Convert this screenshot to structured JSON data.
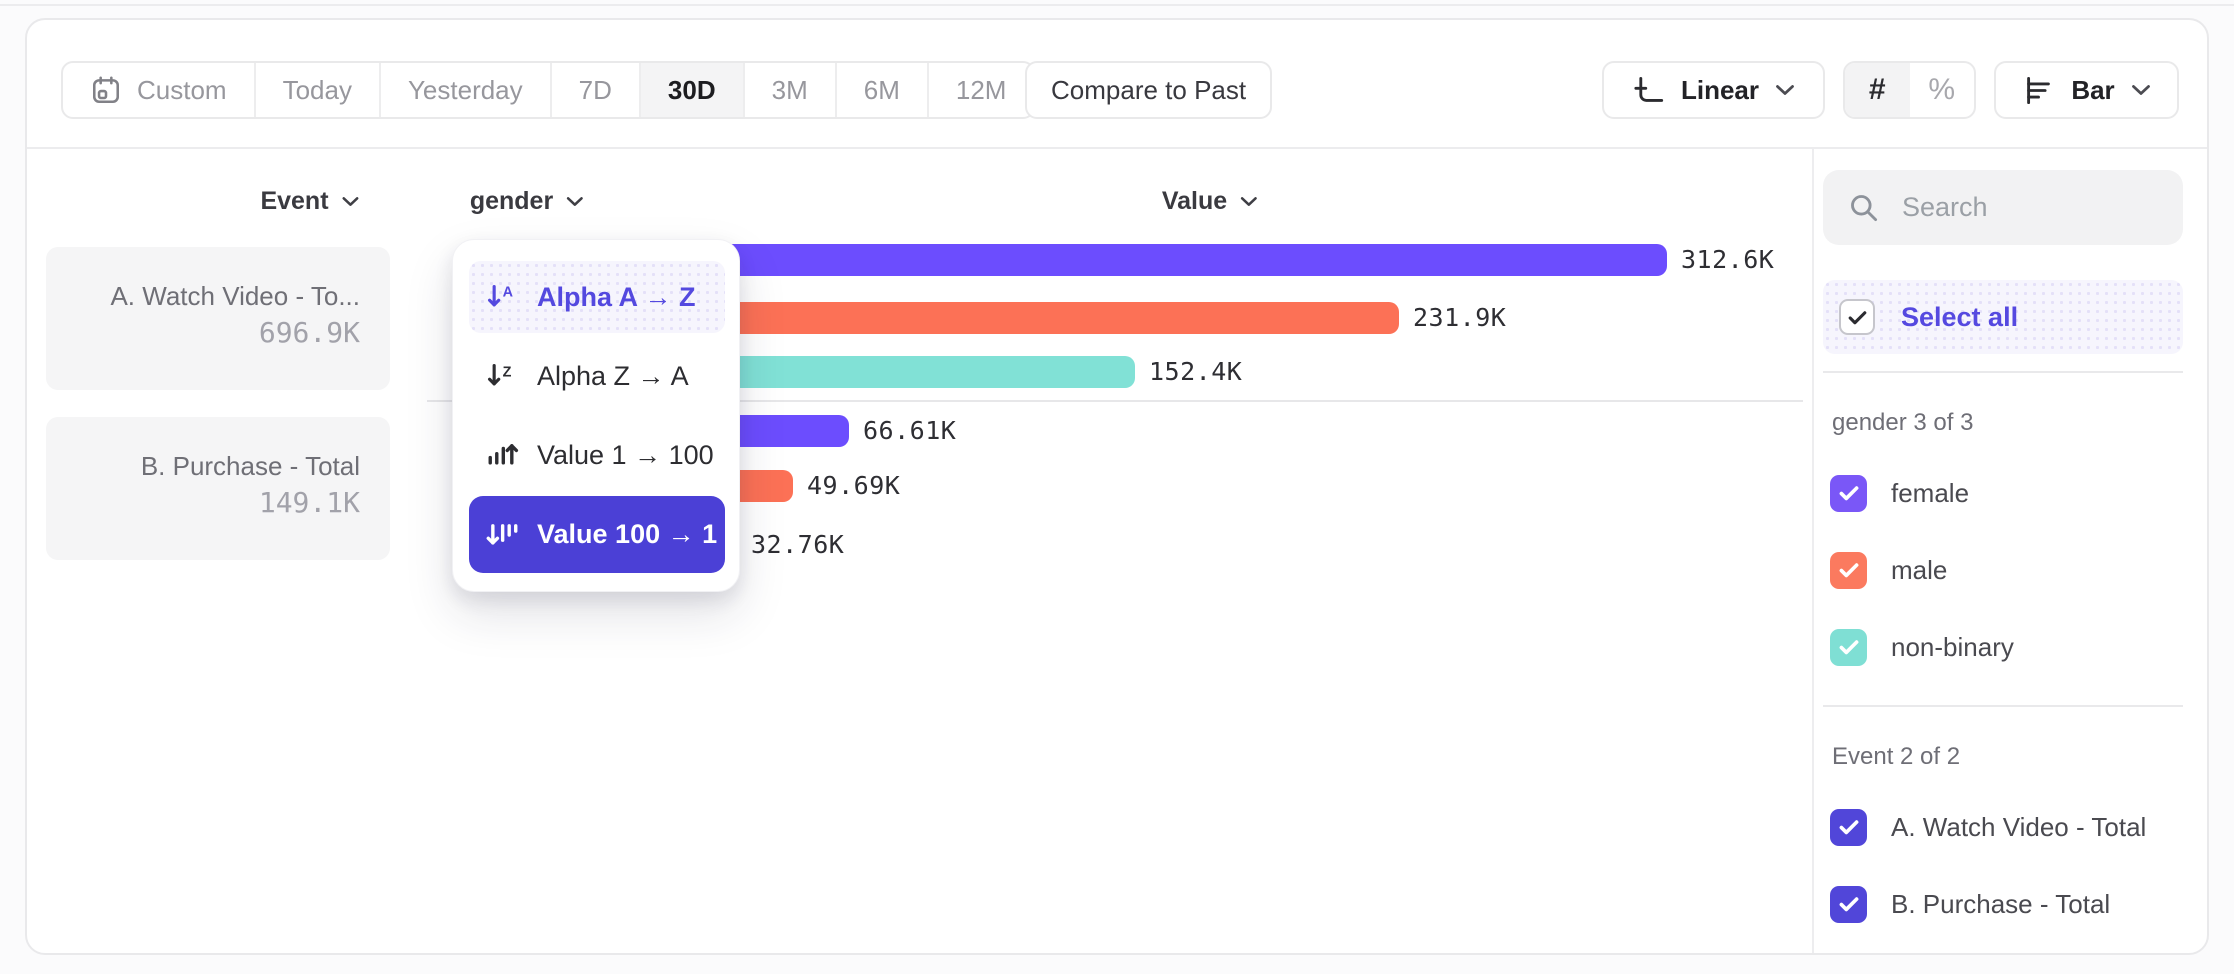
{
  "toolbar": {
    "date_ranges": [
      {
        "label": "Custom",
        "icon": "calendar-icon",
        "selected": false
      },
      {
        "label": "Today",
        "selected": false
      },
      {
        "label": "Yesterday",
        "selected": false
      },
      {
        "label": "7D",
        "selected": false
      },
      {
        "label": "30D",
        "selected": true
      },
      {
        "label": "3M",
        "selected": false
      },
      {
        "label": "6M",
        "selected": false
      },
      {
        "label": "12M",
        "selected": false
      }
    ],
    "compare_label": "Compare to Past",
    "scale_label": "Linear",
    "scale_icon": "linear-axes-icon",
    "format_count_label": "#",
    "format_percent_label": "%",
    "format_selected": "#",
    "chart_type_label": "Bar",
    "chart_type_icon": "bar-chart-icon"
  },
  "columns": {
    "event": "Event",
    "breakdown": "gender",
    "value": "Value"
  },
  "events": [
    {
      "name": "A. Watch Video - To...",
      "total": "696.9K"
    },
    {
      "name": "B. Purchase - Total",
      "total": "149.1K"
    }
  ],
  "sort_menu": {
    "items": [
      {
        "label": "Alpha A → Z",
        "icon": "sort-alpha-asc-icon",
        "state": "highlighted"
      },
      {
        "label": "Alpha Z → A",
        "icon": "sort-alpha-desc-icon",
        "state": ""
      },
      {
        "label": "Value 1 → 100",
        "icon": "sort-value-asc-icon",
        "state": ""
      },
      {
        "label": "Value 100 → 1",
        "icon": "sort-value-desc-icon",
        "state": "selected"
      }
    ]
  },
  "chart_data": {
    "type": "bar",
    "orientation": "horizontal",
    "sort": "Value 100 → 1",
    "value_axis_max": 312600,
    "palette": {
      "female": "#6c4dfe",
      "male": "#fc7156",
      "non-binary": "#81e1d6"
    },
    "groups": [
      {
        "event": "A. Watch Video - Total",
        "total_label": "696.9K",
        "bars": [
          {
            "category": "female",
            "value": 312600,
            "label": "312.6K"
          },
          {
            "category": "male",
            "value": 231900,
            "label": "231.9K"
          },
          {
            "category": "non-binary",
            "value": 152400,
            "label": "152.4K"
          }
        ]
      },
      {
        "event": "B. Purchase - Total",
        "total_label": "149.1K",
        "bars": [
          {
            "category": "female",
            "value": 66610,
            "label": "66.61K"
          },
          {
            "category": "male",
            "value": 49690,
            "label": "49.69K"
          },
          {
            "category": "non-binary",
            "value": 32760,
            "label": "32.76K"
          }
        ]
      }
    ]
  },
  "sidebar": {
    "search_placeholder": "Search",
    "select_all_label": "Select all",
    "groups": [
      {
        "title": "gender 3 of 3",
        "items": [
          {
            "label": "female",
            "checked": true,
            "color": "#7a57f7"
          },
          {
            "label": "male",
            "checked": true,
            "color": "#fb7a5f"
          },
          {
            "label": "non-binary",
            "checked": true,
            "color": "#7fdfd4"
          }
        ]
      },
      {
        "title": "Event 2 of 2",
        "items": [
          {
            "label": "A. Watch Video - Total",
            "checked": true,
            "color": "#5146d9"
          },
          {
            "label": "B. Purchase - Total",
            "checked": true,
            "color": "#5146d9"
          }
        ]
      }
    ]
  },
  "colors": {
    "accent_text": "#5449df",
    "accent_selected_bg": "#4b40d6",
    "series_female": "#6c4dfe",
    "series_male": "#fc7156",
    "series_nonbinary": "#81e1d6"
  }
}
